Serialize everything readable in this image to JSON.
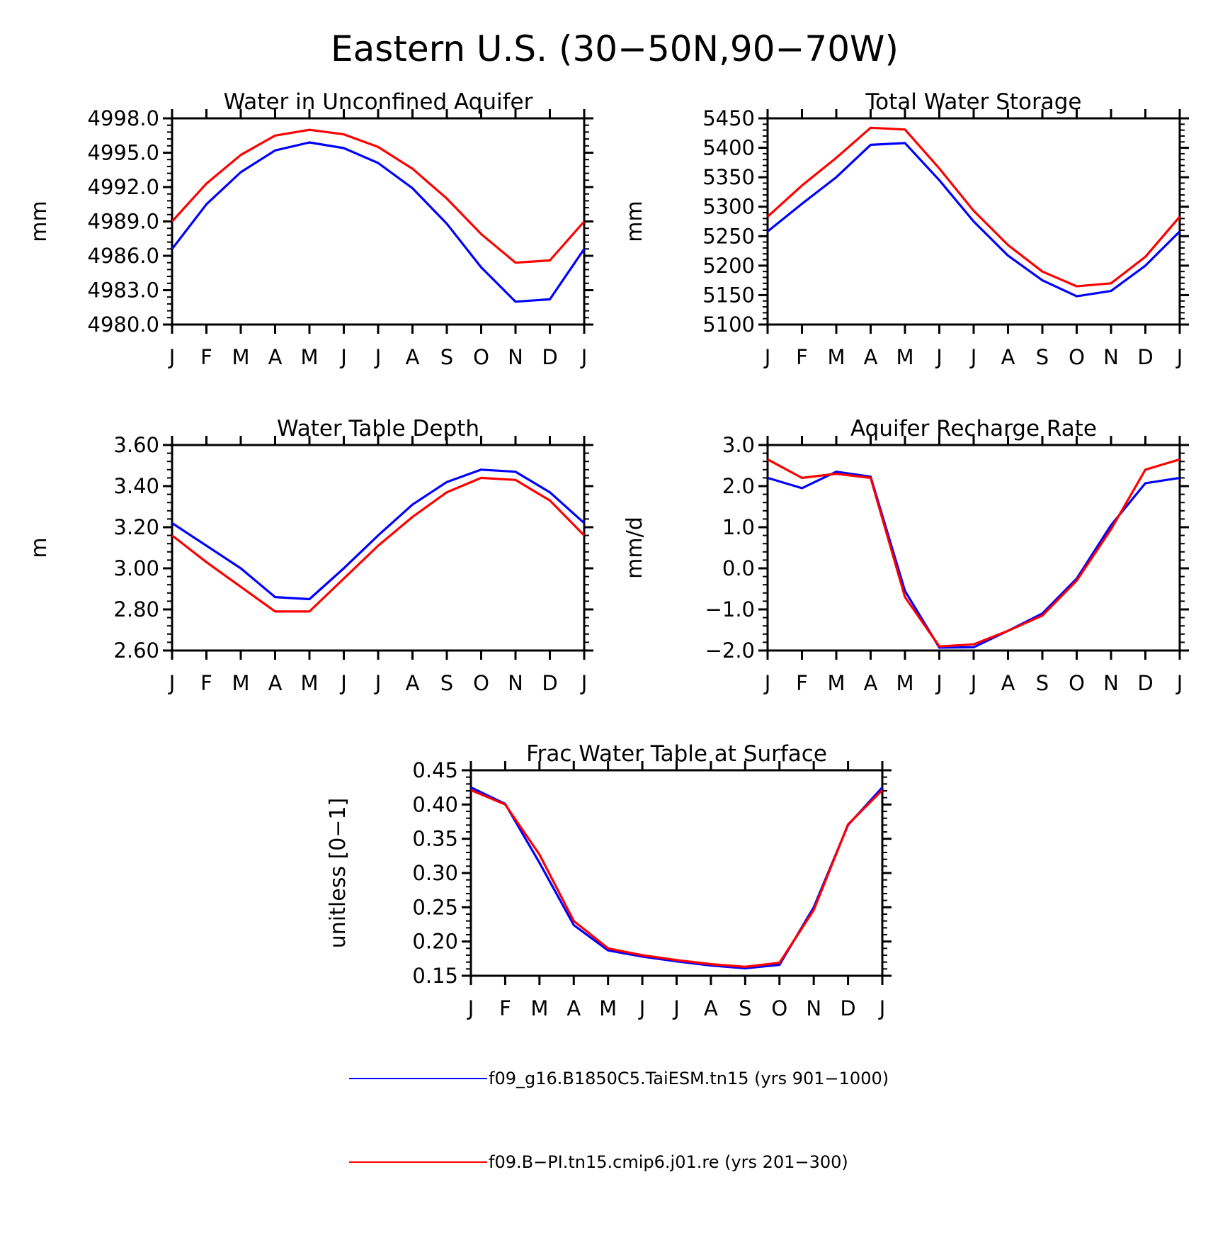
{
  "figure_title": "Eastern U.S. (30−50N,90−70W)",
  "colors": {
    "series_1": "#0000ff",
    "series_2": "#ff0000",
    "axis": "#000000"
  },
  "legend": [
    {
      "label": "f09_g16.B1850C5.TaiESM.tn15 (yrs 901−1000)",
      "color": "#0000ff"
    },
    {
      "label": "f09.B−PI.tn15.cmip6.j01.re (yrs 201−300)",
      "color": "#ff0000"
    }
  ],
  "chart_data": [
    {
      "type": "line",
      "title": "Water in Unconfined Aquifer",
      "ylabel": "mm",
      "xlabel": "",
      "categories": [
        "J",
        "F",
        "M",
        "A",
        "M",
        "J",
        "J",
        "A",
        "S",
        "O",
        "N",
        "D",
        "J"
      ],
      "ylim": [
        4980.0,
        4998.0
      ],
      "yticks": [
        "4980.0",
        "4983.0",
        "4986.0",
        "4989.0",
        "4992.0",
        "4995.0",
        "4998.0"
      ],
      "series": [
        {
          "color": "#0000ff",
          "values": [
            4986.6,
            4990.5,
            4993.3,
            4995.2,
            4995.9,
            4995.4,
            4994.1,
            4991.9,
            4988.8,
            4985.0,
            4982.0,
            4982.2,
            4986.6
          ]
        },
        {
          "color": "#ff0000",
          "values": [
            4989.0,
            4992.3,
            4994.8,
            4996.5,
            4997.0,
            4996.6,
            4995.5,
            4993.6,
            4991.0,
            4987.9,
            4985.4,
            4985.6,
            4989.0
          ]
        }
      ]
    },
    {
      "type": "line",
      "title": "Total Water Storage",
      "ylabel": "mm",
      "xlabel": "",
      "categories": [
        "J",
        "F",
        "M",
        "A",
        "M",
        "J",
        "J",
        "A",
        "S",
        "O",
        "N",
        "D",
        "J"
      ],
      "ylim": [
        5100,
        5450
      ],
      "yticks": [
        "5100",
        "5150",
        "5200",
        "5250",
        "5300",
        "5350",
        "5400",
        "5450"
      ],
      "series": [
        {
          "color": "#0000ff",
          "values": [
            5258,
            5305,
            5350,
            5405,
            5408,
            5345,
            5275,
            5217,
            5175,
            5148,
            5157,
            5200,
            5258
          ]
        },
        {
          "color": "#ff0000",
          "values": [
            5283,
            5336,
            5383,
            5434,
            5431,
            5365,
            5293,
            5235,
            5190,
            5165,
            5170,
            5215,
            5283
          ]
        }
      ]
    },
    {
      "type": "line",
      "title": "Water Table Depth",
      "ylabel": "m",
      "xlabel": "",
      "categories": [
        "J",
        "F",
        "M",
        "A",
        "M",
        "J",
        "J",
        "A",
        "S",
        "O",
        "N",
        "D",
        "J"
      ],
      "ylim": [
        2.6,
        3.6
      ],
      "yticks": [
        "2.60",
        "2.80",
        "3.00",
        "3.20",
        "3.40",
        "3.60"
      ],
      "series": [
        {
          "color": "#0000ff",
          "values": [
            3.22,
            3.11,
            3.0,
            2.86,
            2.85,
            3.0,
            3.16,
            3.31,
            3.42,
            3.48,
            3.47,
            3.37,
            3.22
          ]
        },
        {
          "color": "#ff0000",
          "values": [
            3.16,
            3.03,
            2.91,
            2.79,
            2.79,
            2.95,
            3.11,
            3.25,
            3.37,
            3.44,
            3.43,
            3.33,
            3.16
          ]
        }
      ]
    },
    {
      "type": "line",
      "title": "Aquifer Recharge Rate",
      "ylabel": "mm/d",
      "xlabel": "",
      "categories": [
        "J",
        "F",
        "M",
        "A",
        "M",
        "J",
        "J",
        "A",
        "S",
        "O",
        "N",
        "D",
        "J"
      ],
      "ylim": [
        -2.0,
        3.0
      ],
      "yticks": [
        "−2.0",
        "−1.0",
        "0.0",
        "1.0",
        "2.0",
        "3.0"
      ],
      "series": [
        {
          "color": "#0000ff",
          "values": [
            2.2,
            1.95,
            2.35,
            2.23,
            -0.55,
            -1.93,
            -1.92,
            -1.52,
            -1.1,
            -0.25,
            1.05,
            2.07,
            2.2
          ]
        },
        {
          "color": "#ff0000",
          "values": [
            2.65,
            2.2,
            2.3,
            2.2,
            -0.7,
            -1.9,
            -1.85,
            -1.52,
            -1.15,
            -0.3,
            0.95,
            2.4,
            2.65
          ]
        }
      ]
    },
    {
      "type": "line",
      "title": "Frac Water Table at Surface",
      "ylabel": "unitless [0−1]",
      "xlabel": "",
      "categories": [
        "J",
        "F",
        "M",
        "A",
        "M",
        "J",
        "J",
        "A",
        "S",
        "O",
        "N",
        "D",
        "J"
      ],
      "ylim": [
        0.15,
        0.45
      ],
      "yticks": [
        "0.15",
        "0.20",
        "0.25",
        "0.30",
        "0.35",
        "0.40",
        "0.45"
      ],
      "series": [
        {
          "color": "#0000ff",
          "values": [
            0.425,
            0.401,
            0.315,
            0.224,
            0.187,
            0.178,
            0.171,
            0.165,
            0.161,
            0.166,
            0.25,
            0.37,
            0.425
          ]
        },
        {
          "color": "#ff0000",
          "values": [
            0.421,
            0.4,
            0.327,
            0.23,
            0.19,
            0.18,
            0.173,
            0.167,
            0.163,
            0.169,
            0.246,
            0.371,
            0.421
          ]
        }
      ]
    }
  ]
}
